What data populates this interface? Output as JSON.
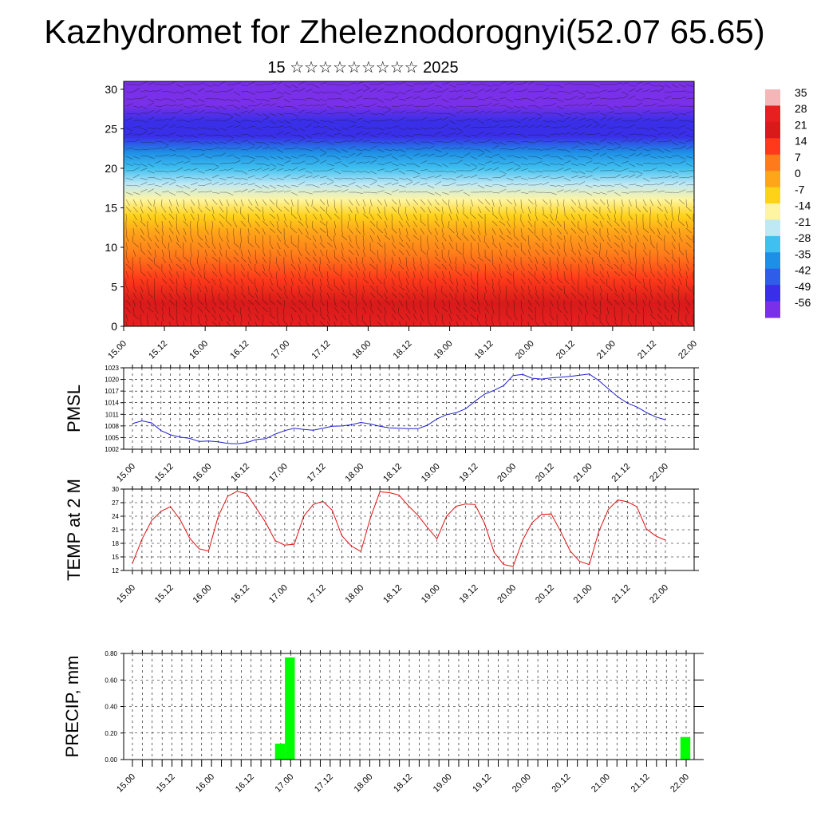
{
  "title": "Kazhydromet for Zheleznodorognyi(52.07 65.65)",
  "subtitle": "15 ☆☆☆☆☆☆☆☆☆ 2025",
  "time_labels": [
    "15.00",
    "15.12",
    "16.00",
    "16.12",
    "17.00",
    "17.12",
    "18.00",
    "18.12",
    "19.00",
    "19.12",
    "20.00",
    "20.12",
    "21.00",
    "21.12",
    "22.00"
  ],
  "chart_data": [
    {
      "type": "heatmap",
      "name": "cross-section",
      "y_ticks": [
        0,
        5,
        10,
        15,
        20,
        25,
        30
      ],
      "ylim": [
        0,
        31
      ],
      "colorbar": {
        "labels": [
          "35",
          "28",
          "21",
          "14",
          "7",
          "0",
          "-7",
          "-14",
          "-21",
          "-28",
          "-35",
          "-42",
          "-49",
          "-56"
        ],
        "colors": [
          "#f4b6b6",
          "#e62020",
          "#d81a1a",
          "#ff3a1a",
          "#ff7a1a",
          "#ffa51a",
          "#ffd21a",
          "#fff5a0",
          "#bfe8f5",
          "#3fc0f0",
          "#1e8fe6",
          "#2f5ce8",
          "#3a2fe8",
          "#7a2fe8"
        ]
      },
      "temperature_profile": [
        {
          "height": 0,
          "value": 28
        },
        {
          "height": 3,
          "value": 24
        },
        {
          "height": 6,
          "value": 17
        },
        {
          "height": 9,
          "value": 9
        },
        {
          "height": 12,
          "value": 1
        },
        {
          "height": 14,
          "value": -5
        },
        {
          "height": 16,
          "value": -12
        },
        {
          "height": 18,
          "value": -18
        },
        {
          "height": 20,
          "value": -26
        },
        {
          "height": 22,
          "value": -36
        },
        {
          "height": 24,
          "value": -46
        },
        {
          "height": 26,
          "value": -52
        },
        {
          "height": 28,
          "value": -56
        },
        {
          "height": 31,
          "value": -58
        }
      ]
    },
    {
      "type": "line",
      "ylabel": "PMSL",
      "y_ticks": [
        1002,
        1005,
        1008,
        1011,
        1014,
        1017,
        1020,
        1023
      ],
      "ylim": [
        1002,
        1023
      ],
      "color": "#2020d0",
      "x": [
        0,
        3,
        6,
        9,
        12,
        15,
        18,
        21,
        24,
        27,
        30,
        33,
        36,
        39,
        42,
        45,
        48,
        51,
        54,
        57,
        60,
        63,
        66,
        69,
        72,
        75,
        78,
        81,
        84,
        87,
        90,
        93,
        96,
        99,
        102,
        105,
        108,
        111,
        114,
        117,
        120,
        123,
        126,
        129,
        132,
        135,
        138,
        141,
        144,
        147,
        150,
        153,
        156,
        159,
        162,
        165,
        168
      ],
      "values": [
        1008.6,
        1009.3,
        1008.8,
        1006.8,
        1005.7,
        1005.1,
        1004.8,
        1004.0,
        1004.1,
        1003.9,
        1003.5,
        1003.4,
        1003.7,
        1004.5,
        1004.7,
        1005.9,
        1006.8,
        1007.4,
        1007.1,
        1006.9,
        1007.4,
        1007.9,
        1008.0,
        1008.3,
        1008.9,
        1008.5,
        1007.9,
        1007.5,
        1007.4,
        1007.3,
        1007.3,
        1008.2,
        1009.8,
        1010.9,
        1011.4,
        1012.4,
        1014.4,
        1016.2,
        1017.2,
        1018.4,
        1021.0,
        1021.3,
        1020.3,
        1020.1,
        1020.4,
        1020.6,
        1020.8,
        1021.1,
        1021.4,
        1019.7,
        1017.6,
        1015.5,
        1013.9,
        1012.9,
        1011.5,
        1010.3,
        1009.6
      ]
    },
    {
      "type": "line",
      "ylabel": "TEMP at 2 M",
      "y_ticks": [
        12,
        15,
        18,
        21,
        24,
        27,
        30
      ],
      "ylim": [
        12,
        30
      ],
      "color": "#e01010",
      "x": [
        0,
        3,
        6,
        9,
        12,
        15,
        18,
        21,
        24,
        27,
        30,
        33,
        36,
        39,
        42,
        45,
        48,
        51,
        54,
        57,
        60,
        63,
        66,
        69,
        72,
        75,
        78,
        81,
        84,
        87,
        90,
        93,
        96,
        99,
        102,
        105,
        108,
        111,
        114,
        117,
        120,
        123,
        126,
        129,
        132,
        135,
        138,
        141,
        144,
        147,
        150,
        153,
        156,
        159,
        162,
        165,
        168
      ],
      "values": [
        13.6,
        18.9,
        23.0,
        25.1,
        26.1,
        23.3,
        19.2,
        16.8,
        16.3,
        23.9,
        28.4,
        29.5,
        29.0,
        25.8,
        22.6,
        18.6,
        17.6,
        17.8,
        24.0,
        26.6,
        27.3,
        25.3,
        19.7,
        17.4,
        16.2,
        23.6,
        29.4,
        29.2,
        28.7,
        26.3,
        24.2,
        21.5,
        19.0,
        24.0,
        26.2,
        26.7,
        26.6,
        22.4,
        16.0,
        13.3,
        12.9,
        18.7,
        22.6,
        24.4,
        24.5,
        20.6,
        16.3,
        14.0,
        13.3,
        20.6,
        25.5,
        27.6,
        27.2,
        26.1,
        21.2,
        19.6,
        18.7
      ]
    },
    {
      "type": "bar",
      "ylabel": "PRECIP, mm",
      "y_ticks": [
        "0.00",
        "0.20",
        "0.40",
        "0.60",
        "0.80"
      ],
      "ylim": [
        0,
        0.8
      ],
      "color": "#00ff00",
      "x": [
        45,
        48,
        168
      ],
      "values": [
        0.12,
        0.77,
        0.17
      ]
    }
  ]
}
